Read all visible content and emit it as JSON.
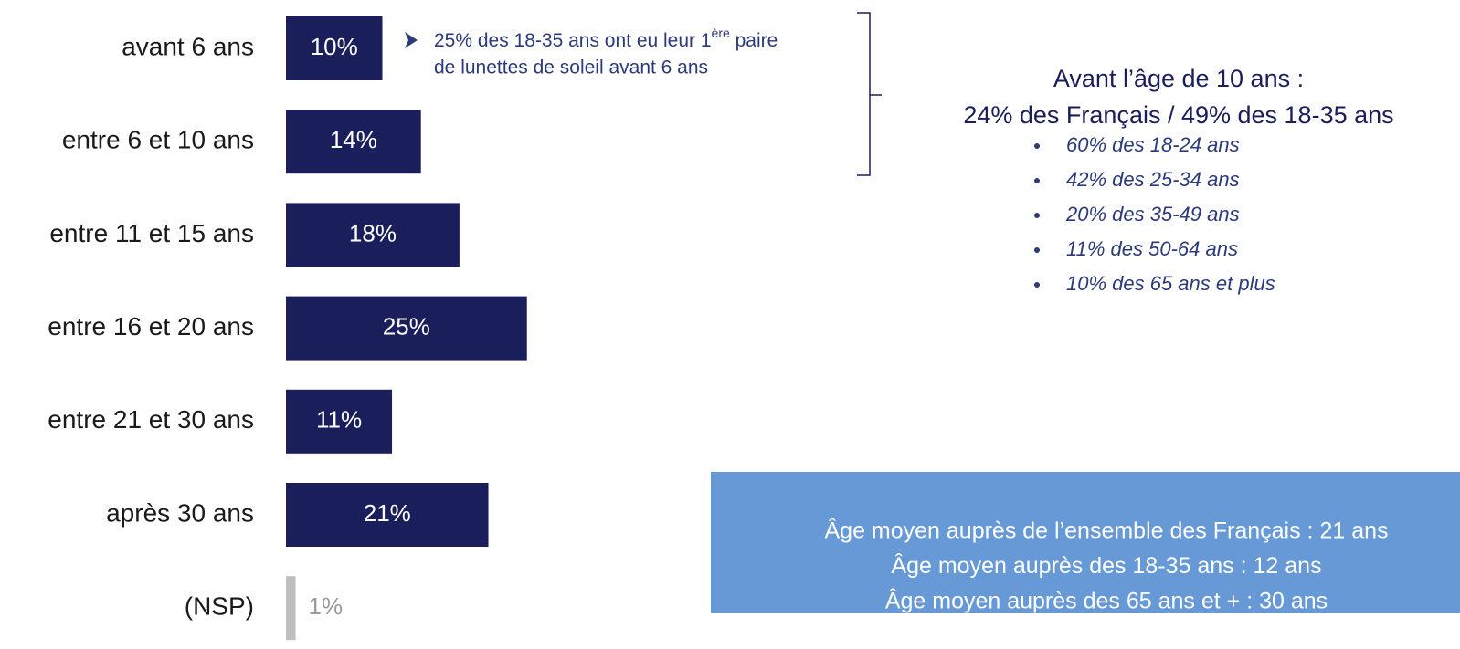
{
  "chart_data": {
    "type": "bar",
    "orientation": "horizontal",
    "categories": [
      "avant 6 ans",
      "entre 6 et 10 ans",
      "entre 11 et 15 ans",
      "entre 16 et 20 ans",
      "entre 21 et 30 ans",
      "après 30 ans",
      "(NSP)"
    ],
    "values": [
      10,
      14,
      18,
      25,
      11,
      21,
      1
    ],
    "value_labels": [
      "10%",
      "14%",
      "18%",
      "25%",
      "11%",
      "21%",
      "1%"
    ],
    "colors": [
      "#1a1f5c",
      "#1a1f5c",
      "#1a1f5c",
      "#1a1f5c",
      "#1a1f5c",
      "#1a1f5c",
      "#bfbfbf"
    ],
    "note": {
      "before": "25% des 18-35 ans ont eu leur 1",
      "superscript": "ère",
      "after": " paire",
      "line2": "de lunettes de soleil avant 6 ans"
    },
    "heading": [
      "Avant l’âge de 10 ans  :",
      "24% des Français / 49% des 18-35 ans"
    ],
    "bullets": [
      "60% des 18-24 ans",
      "42% des 25-34 ans",
      "20% des 35-49 ans",
      "11% des 50-64 ans",
      "10% des 65 ans et plus"
    ],
    "summary": [
      "Âge moyen auprès de l’ensemble des Français : 21 ans",
      "Âge moyen auprès des 18-35 ans : 12 ans",
      "Âge moyen auprès des 65 ans et + : 30 ans"
    ]
  }
}
